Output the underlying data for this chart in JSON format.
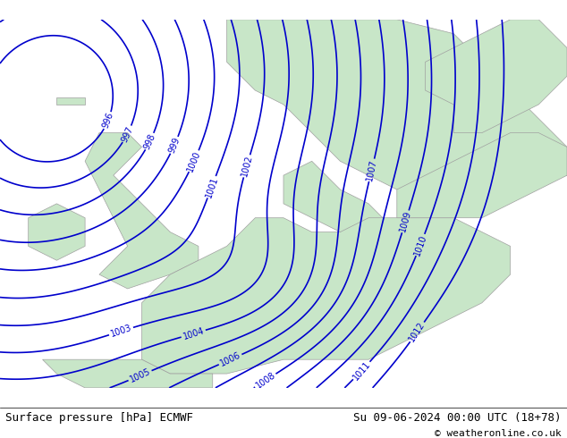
{
  "title_left": "Surface pressure [hPa] ECMWF",
  "title_right": "Su 09-06-2024 00:00 UTC (18+78)",
  "copyright": "© weatheronline.co.uk",
  "bg_color": "#c8e6c8",
  "land_color": "#c8e6c8",
  "sea_color": "#d8d8d8",
  "contour_color": "#0000cc",
  "label_color": "#0000cc",
  "text_color": "#000000",
  "bottom_bg": "#ffffff",
  "isobar_values": [
    996,
    997,
    998,
    999,
    1000,
    1001,
    1002,
    1003,
    1004,
    1005,
    1006,
    1007,
    1008,
    1009,
    1010,
    1011,
    1012
  ],
  "figsize": [
    6.34,
    4.9
  ],
  "dpi": 100
}
